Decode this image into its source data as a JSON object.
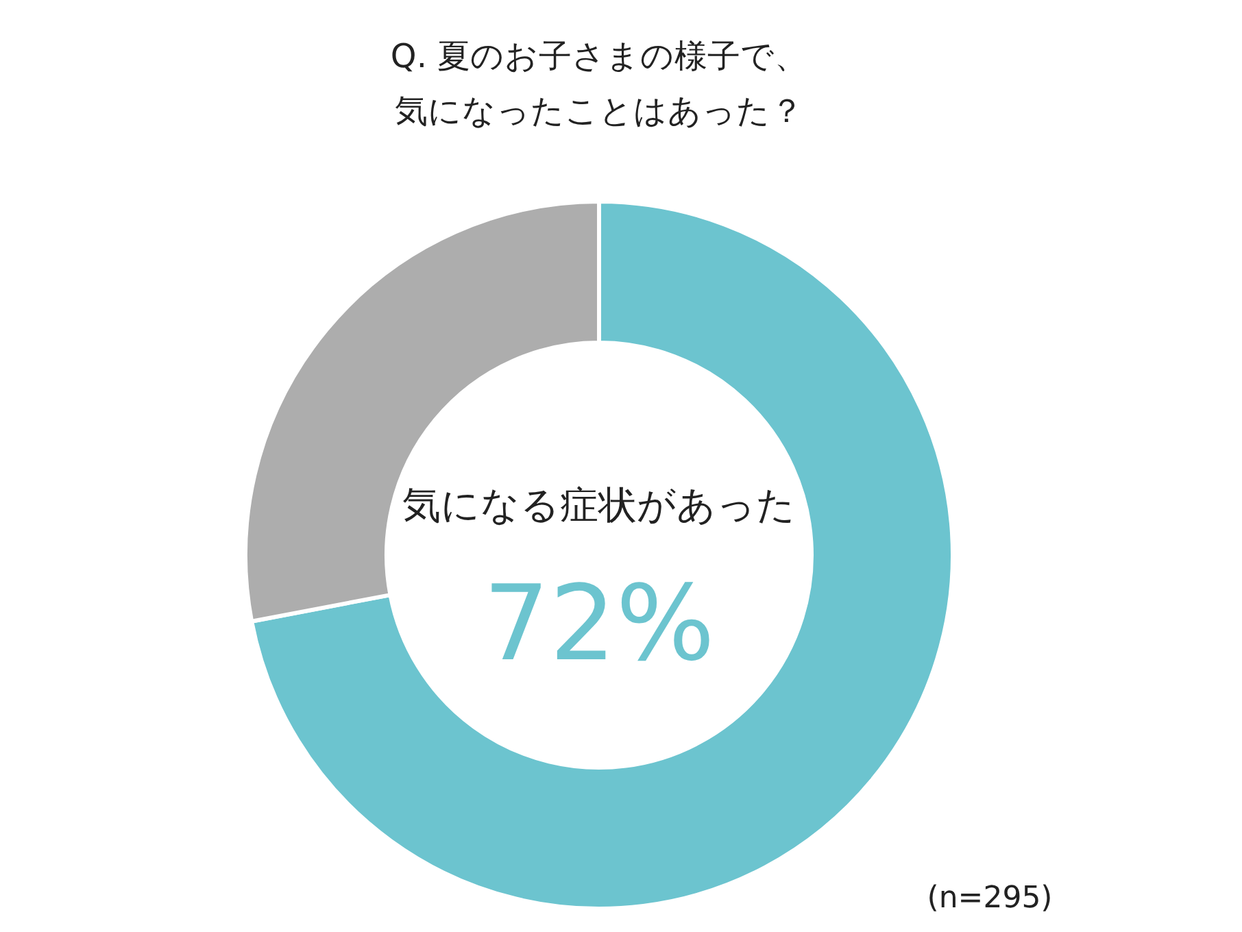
{
  "chart_data": {
    "type": "donut",
    "title": "Q. 夏のお子さまの様子で、",
    "subtitle": "気になったことはあった？",
    "categories": [
      "気になる症状があった",
      null
    ],
    "values": [
      72,
      28
    ],
    "colors": [
      "#6cc4cf",
      "#adadad"
    ],
    "value_labels": [
      "72%",
      null
    ],
    "annotations": [
      "(n=295)"
    ]
  }
}
